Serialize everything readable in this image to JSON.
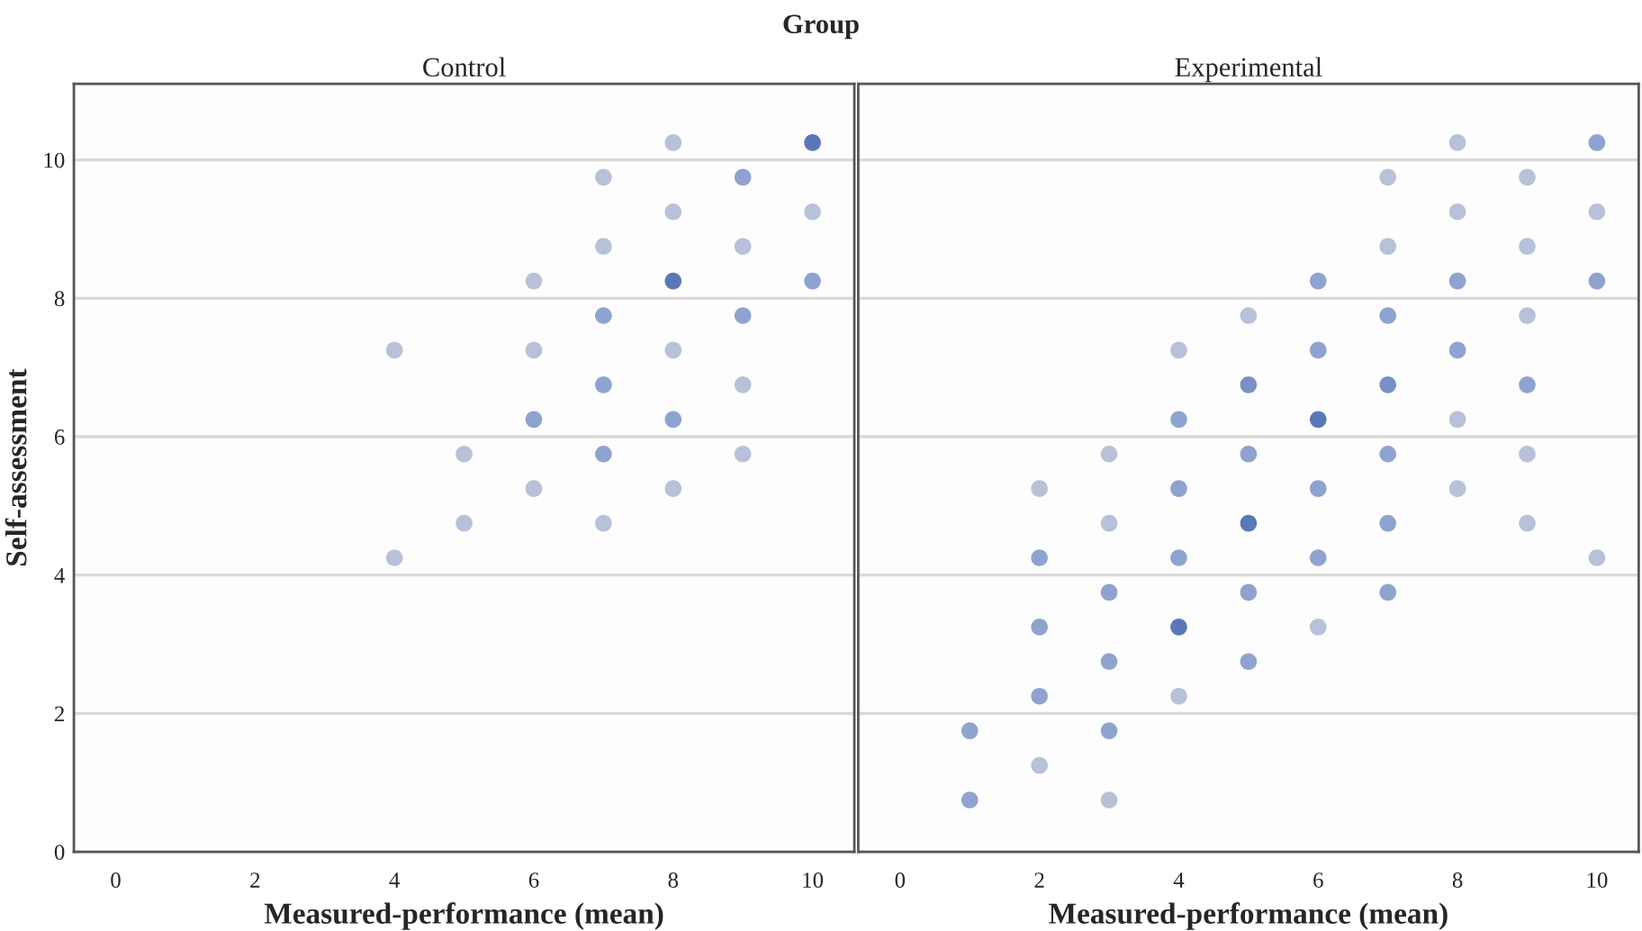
{
  "chart_data": [
    {
      "type": "scatter",
      "title": "Control",
      "xlabel": "Measured-performance (mean)",
      "ylabel": "Self-assessment",
      "annotations": [
        "Group"
      ],
      "xlim": [
        -0.6,
        10.6
      ],
      "ylim": [
        0,
        11.1
      ],
      "xticks": [
        0,
        2,
        4,
        6,
        8,
        10
      ],
      "yticks": [
        0,
        2,
        4,
        6,
        8,
        10
      ],
      "grid": "y",
      "marker": "circle",
      "series": [
        {
          "x": [
            4,
            4,
            5,
            5,
            6,
            6,
            6,
            6,
            7,
            7,
            7,
            7,
            7,
            7,
            8,
            8,
            8,
            8,
            8,
            8,
            9,
            9,
            9,
            9,
            9,
            10,
            10,
            10
          ],
          "values": [
            7.25,
            4.25,
            5.75,
            4.75,
            8.25,
            7.25,
            6.25,
            5.25,
            9.75,
            8.75,
            7.75,
            6.75,
            5.75,
            4.75,
            10.25,
            9.25,
            8.25,
            7.25,
            6.25,
            5.25,
            9.75,
            8.75,
            7.75,
            6.75,
            5.75,
            10.25,
            9.25,
            8.25
          ],
          "colors": [
            "#b7c1d8",
            "#b7c1d8",
            "#b7c1d8",
            "#b7c1d8",
            "#b7c1d8",
            "#b7c1d8",
            "#8ea3cf",
            "#b7c1d8",
            "#b7c1d8",
            "#b7c1d8",
            "#8ea3cf",
            "#8ea3cf",
            "#8ea3cf",
            "#b7c1d8",
            "#b7c1d8",
            "#b7c1d8",
            "#5a78b7",
            "#b7c1d8",
            "#8ea3cf",
            "#b7c1d8",
            "#8ea3cf",
            "#b7c1d8",
            "#8ea3cf",
            "#b7c1d8",
            "#b7c1d8",
            "#5a78b7",
            "#b7c1d8",
            "#8ea3cf"
          ]
        }
      ]
    },
    {
      "type": "scatter",
      "title": "Experimental",
      "xlabel": "Measured-performance (mean)",
      "xlim": [
        -0.6,
        10.6
      ],
      "ylim": [
        0,
        11.1
      ],
      "xticks": [
        0,
        2,
        4,
        6,
        8,
        10
      ],
      "yticks": [
        0,
        2,
        4,
        6,
        8,
        10
      ],
      "grid": "y",
      "marker": "circle",
      "tick_labels": "x",
      "series": [
        {
          "x": [
            1,
            1,
            2,
            2,
            2,
            2,
            2,
            3,
            3,
            3,
            3,
            3,
            3,
            4,
            4,
            4,
            4,
            4,
            4,
            5,
            5,
            5,
            5,
            5,
            5,
            6,
            6,
            6,
            6,
            6,
            6,
            7,
            7,
            7,
            7,
            7,
            7,
            7,
            8,
            8,
            8,
            8,
            8,
            8,
            9,
            9,
            9,
            9,
            9,
            9,
            10,
            10,
            10,
            10
          ],
          "values": [
            1.75,
            0.75,
            5.25,
            4.25,
            3.25,
            2.25,
            1.25,
            5.75,
            4.75,
            3.75,
            2.75,
            1.75,
            0.75,
            7.25,
            6.25,
            5.25,
            4.25,
            3.25,
            2.25,
            7.75,
            6.75,
            5.75,
            4.75,
            3.75,
            2.75,
            8.25,
            7.25,
            6.25,
            5.25,
            4.25,
            3.25,
            9.75,
            8.75,
            7.75,
            6.75,
            5.75,
            4.75,
            3.75,
            10.25,
            9.25,
            8.25,
            7.25,
            6.25,
            5.25,
            9.75,
            8.75,
            7.75,
            6.75,
            5.75,
            4.75,
            10.25,
            9.25,
            8.25,
            4.25
          ],
          "colors": [
            "#8ea3cf",
            "#8ea3cf",
            "#b7c1d8",
            "#8ea3cf",
            "#8ea3cf",
            "#8ea3cf",
            "#b7c1d8",
            "#b7c1d8",
            "#b7c1d8",
            "#8ea3cf",
            "#8ea3cf",
            "#8ea3cf",
            "#b7c1d8",
            "#b7c1d8",
            "#8ea3cf",
            "#8ea3cf",
            "#8ea3cf",
            "#5a78b7",
            "#b7c1d8",
            "#b7c1d8",
            "#7990c6",
            "#8ea3cf",
            "#5a78b7",
            "#8ea3cf",
            "#8ea3cf",
            "#8ea3cf",
            "#8ea3cf",
            "#5a78b7",
            "#8ea3cf",
            "#8ea3cf",
            "#b7c1d8",
            "#b7c1d8",
            "#b7c1d8",
            "#8ea3cf",
            "#7990c6",
            "#8ea3cf",
            "#8ea3cf",
            "#8ea3cf",
            "#b7c1d8",
            "#b7c1d8",
            "#8ea3cf",
            "#8ea3cf",
            "#b7c1d8",
            "#b7c1d8",
            "#b7c1d8",
            "#b7c1d8",
            "#b7c1d8",
            "#8ea3cf",
            "#b7c1d8",
            "#b7c1d8",
            "#8ea3cf",
            "#b7c1d8",
            "#8ea3cf",
            "#b7c1d8"
          ]
        }
      ]
    }
  ]
}
